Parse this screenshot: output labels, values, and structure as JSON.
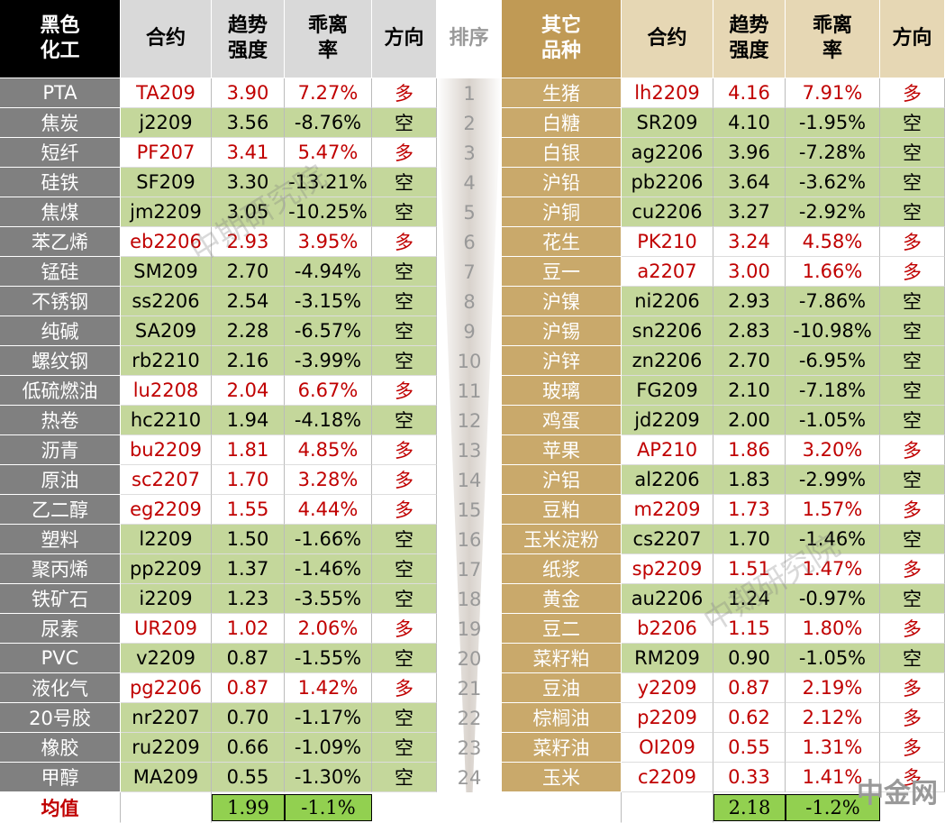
{
  "left": {
    "headers": [
      "黑色化工",
      "合约",
      "趋势强度",
      "乖离率",
      "方向"
    ],
    "rows": [
      [
        "PTA",
        "TA209",
        "3.90",
        "7.27%",
        "多"
      ],
      [
        "焦炭",
        "j2209",
        "3.56",
        "-8.76%",
        "空"
      ],
      [
        "短纤",
        "PF207",
        "3.41",
        "5.47%",
        "多"
      ],
      [
        "硅铁",
        "SF209",
        "3.30",
        "-13.21%",
        "空"
      ],
      [
        "焦煤",
        "jm2209",
        "3.05",
        "-10.25%",
        "空"
      ],
      [
        "苯乙烯",
        "eb2206",
        "2.93",
        "3.95%",
        "多"
      ],
      [
        "锰硅",
        "SM209",
        "2.70",
        "-4.94%",
        "空"
      ],
      [
        "不锈钢",
        "ss2206",
        "2.54",
        "-3.15%",
        "空"
      ],
      [
        "纯碱",
        "SA209",
        "2.28",
        "-6.57%",
        "空"
      ],
      [
        "螺纹钢",
        "rb2210",
        "2.16",
        "-3.99%",
        "空"
      ],
      [
        "低硫燃油",
        "lu2208",
        "2.04",
        "6.67%",
        "多"
      ],
      [
        "热卷",
        "hc2210",
        "1.94",
        "-4.18%",
        "空"
      ],
      [
        "沥青",
        "bu2209",
        "1.81",
        "4.85%",
        "多"
      ],
      [
        "原油",
        "sc2207",
        "1.70",
        "3.28%",
        "多"
      ],
      [
        "乙二醇",
        "eg2209",
        "1.55",
        "4.44%",
        "多"
      ],
      [
        "塑料",
        "l2209",
        "1.50",
        "-1.66%",
        "空"
      ],
      [
        "聚丙烯",
        "pp2209",
        "1.37",
        "-1.46%",
        "空"
      ],
      [
        "铁矿石",
        "i2209",
        "1.23",
        "-3.55%",
        "空"
      ],
      [
        "尿素",
        "UR209",
        "1.02",
        "2.06%",
        "多"
      ],
      [
        "PVC",
        "v2209",
        "0.87",
        "-1.55%",
        "空"
      ],
      [
        "液化气",
        "pg2206",
        "0.87",
        "1.42%",
        "多"
      ],
      [
        "20号胶",
        "nr2207",
        "0.70",
        "-1.17%",
        "空"
      ],
      [
        "橡胶",
        "ru2209",
        "0.66",
        "-1.09%",
        "空"
      ],
      [
        "甲醇",
        "MA209",
        "0.55",
        "-1.30%",
        "空"
      ]
    ],
    "average": {
      "label": "均值",
      "strength": "1.99",
      "deviation": "-1.1%"
    }
  },
  "rank": {
    "header": "排序",
    "values": [
      1,
      2,
      3,
      4,
      5,
      6,
      7,
      8,
      9,
      10,
      11,
      12,
      13,
      14,
      15,
      16,
      17,
      18,
      19,
      20,
      21,
      22,
      23,
      24
    ]
  },
  "right": {
    "headers": [
      "其它品种",
      "合约",
      "趋势强度",
      "乖离率",
      "方向"
    ],
    "rows": [
      [
        "生猪",
        "lh2209",
        "4.16",
        "7.91%",
        "多"
      ],
      [
        "白糖",
        "SR209",
        "4.10",
        "-1.95%",
        "空"
      ],
      [
        "白银",
        "ag2206",
        "3.96",
        "-7.28%",
        "空"
      ],
      [
        "沪铅",
        "pb2206",
        "3.64",
        "-3.62%",
        "空"
      ],
      [
        "沪铜",
        "cu2206",
        "3.27",
        "-2.92%",
        "空"
      ],
      [
        "花生",
        "PK210",
        "3.24",
        "4.58%",
        "多"
      ],
      [
        "豆一",
        "a2207",
        "3.00",
        "1.66%",
        "多"
      ],
      [
        "沪镍",
        "ni2206",
        "2.93",
        "-7.86%",
        "空"
      ],
      [
        "沪锡",
        "sn2206",
        "2.83",
        "-10.98%",
        "空"
      ],
      [
        "沪锌",
        "zn2206",
        "2.70",
        "-6.95%",
        "空"
      ],
      [
        "玻璃",
        "FG209",
        "2.10",
        "-7.18%",
        "空"
      ],
      [
        "鸡蛋",
        "jd2209",
        "2.00",
        "-1.05%",
        "空"
      ],
      [
        "苹果",
        "AP210",
        "1.86",
        "3.20%",
        "多"
      ],
      [
        "沪铝",
        "al2206",
        "1.83",
        "-2.99%",
        "空"
      ],
      [
        "豆粕",
        "m2209",
        "1.73",
        "1.57%",
        "多"
      ],
      [
        "玉米淀粉",
        "cs2207",
        "1.70",
        "-1.46%",
        "空"
      ],
      [
        "纸浆",
        "sp2209",
        "1.51",
        "1.47%",
        "多"
      ],
      [
        "黄金",
        "au2206",
        "1.24",
        "-0.97%",
        "空"
      ],
      [
        "豆二",
        "b2206",
        "1.15",
        "1.80%",
        "多"
      ],
      [
        "菜籽粕",
        "RM209",
        "0.90",
        "-1.05%",
        "空"
      ],
      [
        "豆油",
        "y2209",
        "0.87",
        "2.19%",
        "多"
      ],
      [
        "棕榈油",
        "p2209",
        "0.62",
        "2.12%",
        "多"
      ],
      [
        "菜籽油",
        "OI209",
        "0.55",
        "1.31%",
        "多"
      ],
      [
        "玉米",
        "c2209",
        "0.33",
        "1.41%",
        "多"
      ]
    ],
    "average": {
      "strength": "2.18",
      "deviation": "-1.2%"
    }
  },
  "watermark": "中期研究院",
  "logo": "中金网"
}
